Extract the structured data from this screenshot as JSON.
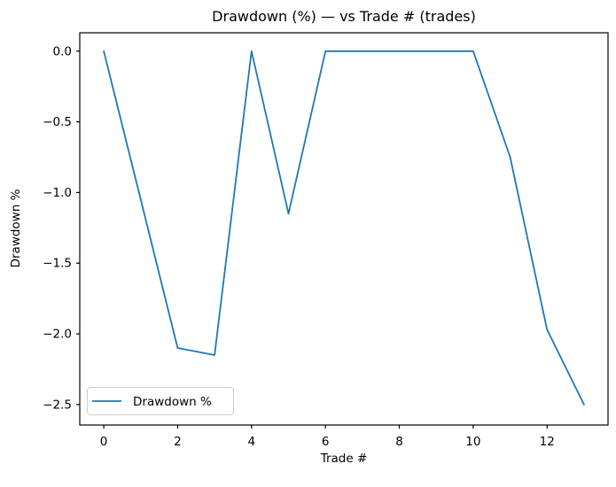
{
  "figure": {
    "title": "Drawdown (%) — vs Trade # (trades)",
    "xlabel": "Trade #",
    "ylabel": "Drawdown %",
    "legend": {
      "label": "Drawdown %",
      "position": "lower left"
    }
  },
  "colors": {
    "line": "#1f77b4",
    "background": "#ffffff",
    "spine": "#000000",
    "tick": "#000000",
    "legend_border": "#cccccc",
    "legend_fill": "#ffffff"
  },
  "chart_data": {
    "type": "line",
    "title": "Drawdown (%) — vs Trade # (trades)",
    "xlabel": "Trade #",
    "ylabel": "Drawdown %",
    "x": [
      0,
      1,
      2,
      3,
      4,
      5,
      6,
      7,
      8,
      9,
      10,
      11,
      12,
      13
    ],
    "series": [
      {
        "name": "Drawdown %",
        "color": "#1f77b4",
        "values": [
          0.0,
          -1.05,
          -2.1,
          -2.15,
          0.0,
          -1.15,
          0.0,
          0.0,
          0.0,
          0.0,
          0.0,
          -0.75,
          -1.97,
          -2.5
        ]
      }
    ],
    "xlim": [
      -0.65,
      13.65
    ],
    "ylim": [
      -2.645,
      0.13
    ],
    "x_ticks": [
      0,
      2,
      4,
      6,
      8,
      10,
      12
    ],
    "y_ticks": [
      0.0,
      -0.5,
      -1.0,
      -1.5,
      -2.0,
      -2.5
    ],
    "x_tick_labels": [
      "0",
      "2",
      "4",
      "6",
      "8",
      "10",
      "12"
    ],
    "y_tick_labels": [
      "0.0",
      "−0.5",
      "−1.0",
      "−1.5",
      "−2.0",
      "−2.5"
    ],
    "grid": false,
    "legend_position": "lower left"
  }
}
